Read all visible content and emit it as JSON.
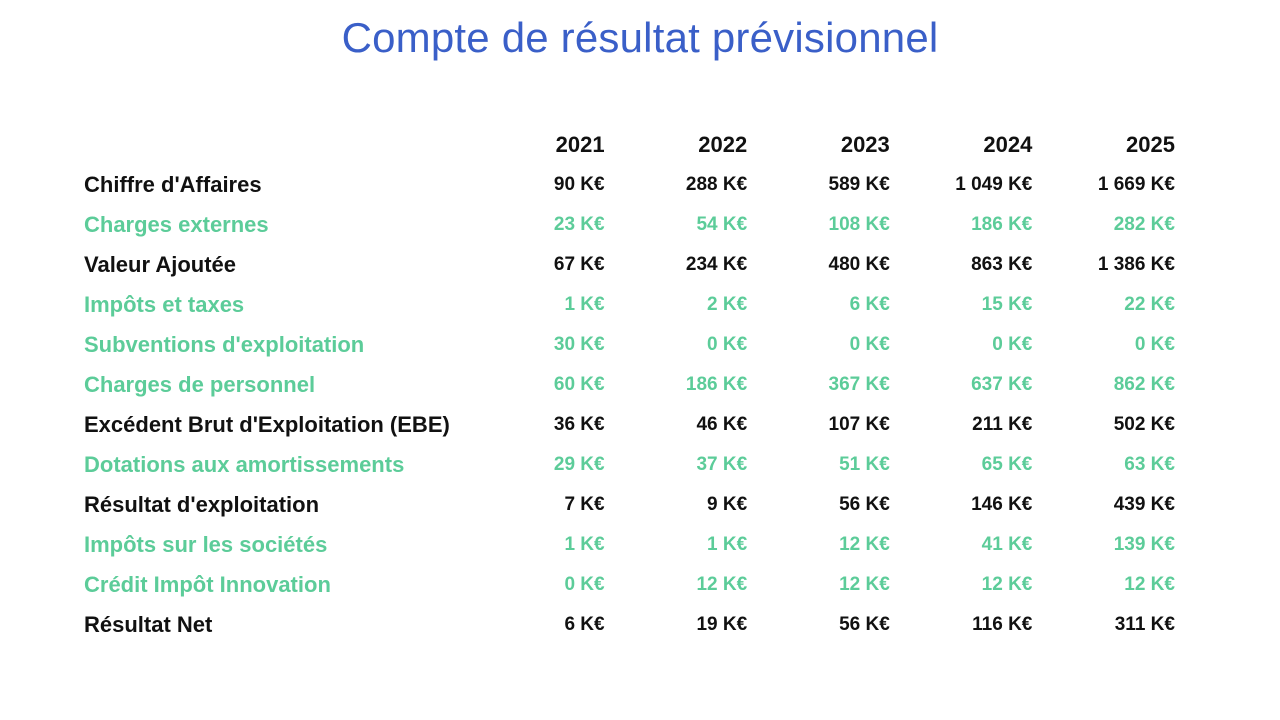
{
  "title": "Compte de résultat prévisionnel",
  "colors": {
    "title": "#3a5fc8",
    "main_row": "#111111",
    "sub_row": "#5ccc99"
  },
  "table": {
    "years": [
      "2021",
      "2022",
      "2023",
      "2024",
      "2025"
    ],
    "rows": [
      {
        "label": "Chiffre d'Affaires",
        "kind": "main",
        "values": [
          "90 K€",
          "288 K€",
          "589 K€",
          "1 049 K€",
          "1 669 K€"
        ]
      },
      {
        "label": "Charges externes",
        "kind": "sub",
        "values": [
          "23 K€",
          "54 K€",
          "108 K€",
          "186 K€",
          "282 K€"
        ]
      },
      {
        "label": "Valeur Ajoutée",
        "kind": "main",
        "values": [
          "67 K€",
          "234 K€",
          "480 K€",
          "863 K€",
          "1 386 K€"
        ]
      },
      {
        "label": "Impôts et taxes",
        "kind": "sub",
        "values": [
          "1 K€",
          "2 K€",
          "6 K€",
          "15 K€",
          "22 K€"
        ]
      },
      {
        "label": "Subventions d'exploitation",
        "kind": "sub",
        "values": [
          "30 K€",
          "0 K€",
          "0 K€",
          "0 K€",
          "0 K€"
        ]
      },
      {
        "label": "Charges de personnel",
        "kind": "sub",
        "values": [
          "60 K€",
          "186 K€",
          "367 K€",
          "637 K€",
          "862 K€"
        ]
      },
      {
        "label": "Excédent Brut d'Exploitation (EBE)",
        "kind": "main",
        "values": [
          "36 K€",
          "46 K€",
          "107 K€",
          "211 K€",
          "502 K€"
        ]
      },
      {
        "label": "Dotations aux amortissements",
        "kind": "sub",
        "values": [
          "29 K€",
          "37 K€",
          "51 K€",
          "65 K€",
          "63 K€"
        ]
      },
      {
        "label": "Résultat d'exploitation",
        "kind": "main",
        "values": [
          "7 K€",
          "9 K€",
          "56 K€",
          "146 K€",
          "439 K€"
        ]
      },
      {
        "label": "Impôts sur les sociétés",
        "kind": "sub",
        "values": [
          "1 K€",
          "1 K€",
          "12 K€",
          "41 K€",
          "139 K€"
        ]
      },
      {
        "label": "Crédit Impôt Innovation",
        "kind": "sub",
        "values": [
          "0 K€",
          "12 K€",
          "12 K€",
          "12 K€",
          "12 K€"
        ]
      },
      {
        "label": "Résultat Net",
        "kind": "main",
        "values": [
          "6 K€",
          "19 K€",
          "56 K€",
          "116 K€",
          "311 K€"
        ]
      }
    ]
  }
}
